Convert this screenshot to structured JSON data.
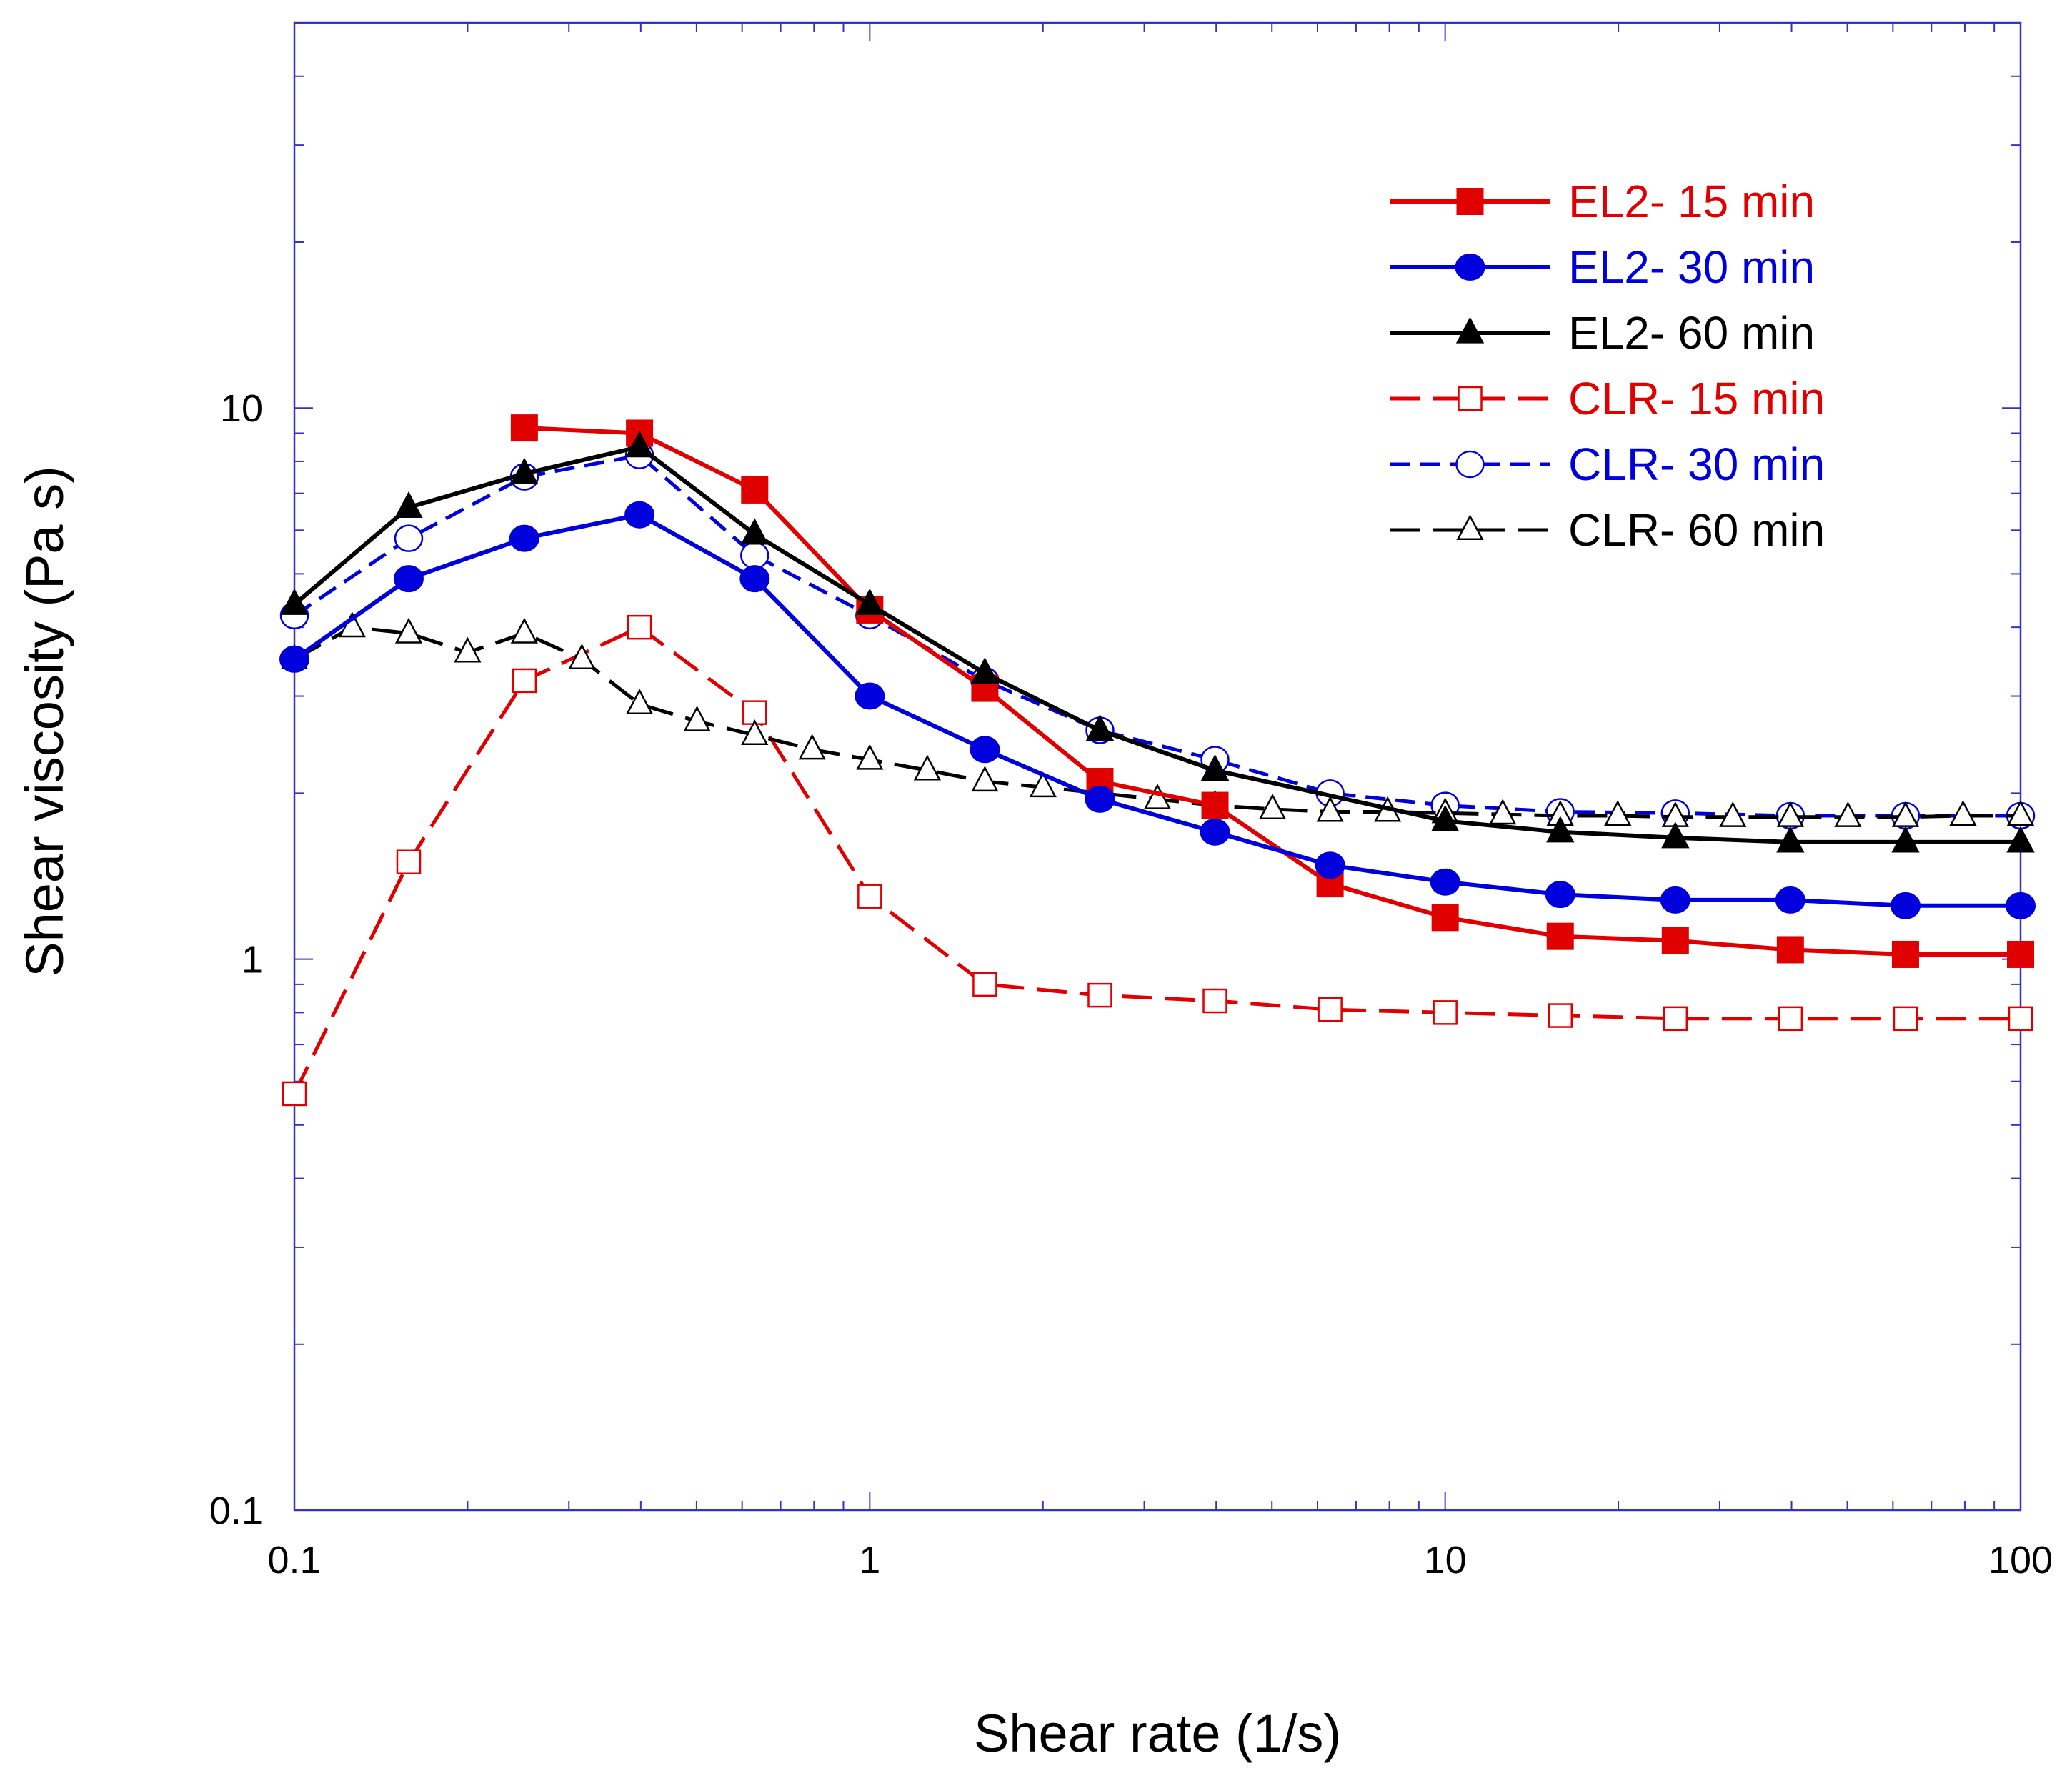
{
  "chart_data": {
    "type": "line",
    "x_scale": "log",
    "y_scale": "log",
    "xlabel": "Shear rate (1/s)",
    "ylabel": "Shear viscosity (Pa s)",
    "xlim": [
      0.1,
      100
    ],
    "ylim": [
      0.1,
      50
    ],
    "x_ticks": [
      {
        "value": 0.1,
        "label": "0.1"
      },
      {
        "value": 1,
        "label": "1"
      },
      {
        "value": 10,
        "label": "10"
      },
      {
        "value": 100,
        "label": "100"
      }
    ],
    "y_ticks": [
      {
        "value": 0.1,
        "label": "0.1"
      },
      {
        "value": 1,
        "label": "1"
      },
      {
        "value": 10,
        "label": "10"
      }
    ],
    "legend_position": "top-right",
    "series": [
      {
        "name": "EL2- 15 min",
        "color": "#e00000",
        "marker": "square",
        "filled": true,
        "dash": "solid",
        "x": [
          0.251,
          0.398,
          0.631,
          1.0,
          1.585,
          2.512,
          3.981,
          6.31,
          10,
          15.85,
          25.12,
          39.81,
          63.1,
          100
        ],
        "y": [
          9.2,
          9.0,
          7.1,
          4.3,
          3.1,
          2.1,
          1.9,
          1.37,
          1.19,
          1.1,
          1.08,
          1.04,
          1.02,
          1.02
        ]
      },
      {
        "name": "EL2- 30 min",
        "color": "#0000dd",
        "marker": "circle",
        "filled": true,
        "dash": "solid",
        "x": [
          0.1,
          0.158,
          0.251,
          0.398,
          0.631,
          1.0,
          1.585,
          2.512,
          3.981,
          6.31,
          10,
          15.85,
          25.12,
          39.81,
          63.1,
          100
        ],
        "y": [
          3.5,
          4.9,
          5.8,
          6.4,
          4.9,
          3.0,
          2.4,
          1.95,
          1.7,
          1.48,
          1.38,
          1.31,
          1.28,
          1.28,
          1.25,
          1.25
        ]
      },
      {
        "name": "EL2- 60 min",
        "color": "#000000",
        "marker": "triangle",
        "filled": true,
        "dash": "solid",
        "x": [
          0.1,
          0.158,
          0.251,
          0.398,
          0.631,
          1.0,
          1.585,
          2.512,
          3.981,
          10,
          15.85,
          25.12,
          39.81,
          63.1,
          100
        ],
        "y": [
          4.4,
          6.6,
          7.6,
          8.5,
          5.9,
          4.4,
          3.3,
          2.6,
          2.2,
          1.78,
          1.7,
          1.66,
          1.63,
          1.63,
          1.63
        ]
      },
      {
        "name": "CLR- 15 min",
        "color": "#e00000",
        "marker": "square",
        "filled": false,
        "dash": "long",
        "x": [
          0.1,
          0.158,
          0.251,
          0.398,
          0.631,
          1.0,
          1.585,
          2.512,
          3.981,
          6.31,
          10,
          15.85,
          25.12,
          39.81,
          63.1,
          100
        ],
        "y": [
          0.57,
          1.5,
          3.2,
          4.0,
          2.8,
          1.3,
          0.9,
          0.86,
          0.84,
          0.81,
          0.8,
          0.79,
          0.78,
          0.78,
          0.78,
          0.78
        ]
      },
      {
        "name": "CLR- 30 min",
        "color": "#0000dd",
        "marker": "circle",
        "filled": false,
        "dash": "medium",
        "x": [
          0.1,
          0.158,
          0.251,
          0.398,
          0.631,
          1.0,
          1.585,
          2.512,
          3.981,
          6.31,
          10,
          15.85,
          25.12,
          39.81,
          63.1,
          100
        ],
        "y": [
          4.2,
          5.8,
          7.5,
          8.2,
          5.4,
          4.2,
          3.2,
          2.6,
          2.3,
          2.0,
          1.9,
          1.85,
          1.84,
          1.82,
          1.82,
          1.82
        ]
      },
      {
        "name": "CLR- 60 min",
        "color": "#000000",
        "marker": "triangle",
        "filled": false,
        "dash": "long",
        "x": [
          0.1,
          0.126,
          0.158,
          0.2,
          0.251,
          0.316,
          0.398,
          0.501,
          0.631,
          0.794,
          1.0,
          1.259,
          1.585,
          2.0,
          2.512,
          3.162,
          3.981,
          5.012,
          6.31,
          7.943,
          10,
          12.59,
          15.85,
          19.95,
          25.12,
          31.62,
          39.81,
          50.12,
          63.1,
          79.43,
          100
        ],
        "y": [
          3.5,
          4.0,
          3.9,
          3.6,
          3.9,
          3.5,
          2.9,
          2.7,
          2.55,
          2.4,
          2.3,
          2.2,
          2.1,
          2.05,
          2.0,
          1.95,
          1.9,
          1.87,
          1.85,
          1.85,
          1.84,
          1.83,
          1.82,
          1.82,
          1.81,
          1.81,
          1.81,
          1.81,
          1.81,
          1.82,
          1.82
        ]
      }
    ]
  }
}
